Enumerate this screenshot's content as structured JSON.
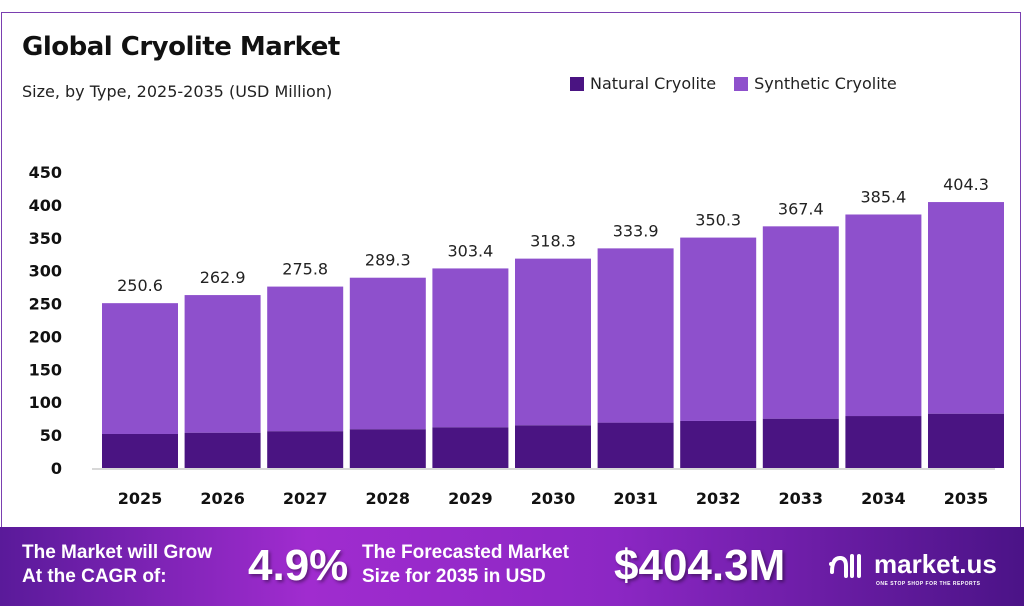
{
  "header": {
    "title": "Global Cryolite Market",
    "subtitle": "Size, by Type, 2025-2035 (USD Million)"
  },
  "colors": {
    "natural": "#4a1482",
    "synthetic": "#8e50cc",
    "banner": "#9b2ccc"
  },
  "chart_data": {
    "type": "bar",
    "stacked": true,
    "title": "Global Cryolite Market",
    "subtitle": "Size, by Type, 2025-2035 (USD Million)",
    "categories": [
      "2025",
      "2026",
      "2027",
      "2028",
      "2029",
      "2030",
      "2031",
      "2032",
      "2033",
      "2034",
      "2035"
    ],
    "series": [
      {
        "name": "Natural Cryolite",
        "values": [
          51.7,
          53.7,
          56,
          59,
          62,
          65,
          69,
          71.5,
          75,
          79,
          82.6
        ]
      },
      {
        "name": "Synthetic Cryolite",
        "values": [
          198.9,
          209.2,
          219.8,
          230.3,
          241.4,
          253.3,
          264.9,
          278.8,
          292.4,
          306.4,
          321.7
        ]
      }
    ],
    "totals": [
      "250.6",
      "262.9",
      "275.8",
      "289.3",
      "303.4",
      "318.3",
      "333.9",
      "350.3",
      "367.4",
      "385.4",
      "404.3"
    ],
    "yticks": [
      "0",
      "50",
      "100",
      "150",
      "200",
      "250",
      "300",
      "350",
      "400",
      "450"
    ],
    "ylim": [
      0,
      450
    ],
    "grid": false,
    "legend": "top-right"
  },
  "banner": {
    "cagr_label_1": "The Market will Grow",
    "cagr_label_2": "At the CAGR of:",
    "cagr_value": "4.9%",
    "forecast_label_1": "The Forecasted Market",
    "forecast_label_2": "Size for 2035 in USD",
    "forecast_value": "$404.3M",
    "logo_text": "market.us",
    "logo_tagline": "ONE STOP SHOP FOR THE REPORTS"
  }
}
